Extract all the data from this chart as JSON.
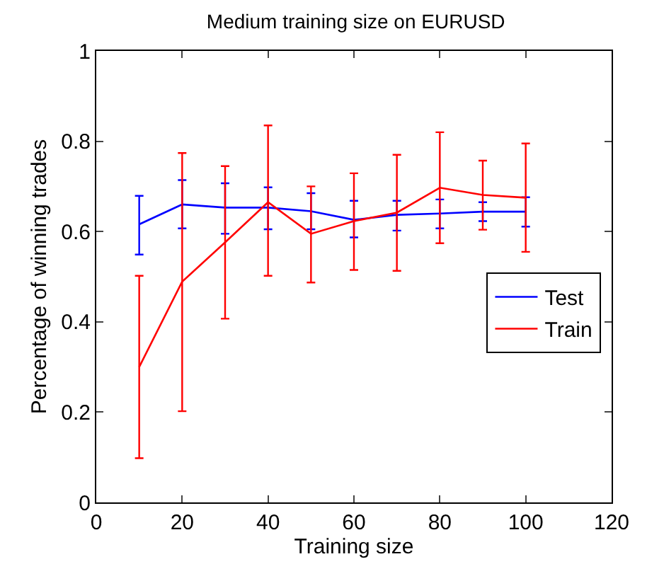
{
  "chart_data": {
    "type": "line",
    "title": "Medium training size on EURUSD",
    "xlabel": "Training size",
    "ylabel": "Percentage of winning trades",
    "x": [
      10,
      20,
      30,
      40,
      50,
      60,
      70,
      80,
      90,
      100
    ],
    "series": [
      {
        "name": "Test",
        "color": "#0000ff",
        "values": [
          0.616,
          0.66,
          0.653,
          0.653,
          0.645,
          0.626,
          0.637,
          0.64,
          0.644,
          0.644
        ],
        "errors": [
          [
            0.549,
            0.679
          ],
          [
            0.607,
            0.714
          ],
          [
            0.595,
            0.707
          ],
          [
            0.605,
            0.698
          ],
          [
            0.605,
            0.685
          ],
          [
            0.587,
            0.668
          ],
          [
            0.602,
            0.668
          ],
          [
            0.607,
            0.671
          ],
          [
            0.623,
            0.665
          ],
          [
            0.611,
            0.676
          ]
        ]
      },
      {
        "name": "Train",
        "color": "#ff0000",
        "values": [
          0.3,
          0.489,
          0.576,
          0.665,
          0.595,
          0.623,
          0.642,
          0.697,
          0.681,
          0.675
        ],
        "errors": [
          [
            0.098,
            0.502
          ],
          [
            0.202,
            0.774
          ],
          [
            0.407,
            0.745
          ],
          [
            0.502,
            0.835
          ],
          [
            0.487,
            0.7
          ],
          [
            0.515,
            0.729
          ],
          [
            0.513,
            0.77
          ],
          [
            0.574,
            0.82
          ],
          [
            0.604,
            0.757
          ],
          [
            0.555,
            0.795
          ]
        ]
      }
    ],
    "xlim": [
      0,
      120
    ],
    "xticks": [
      0,
      20,
      40,
      60,
      80,
      100,
      120
    ],
    "ylim": [
      0,
      1
    ],
    "yticks": [
      0,
      0.2,
      0.4,
      0.6,
      0.8,
      1
    ],
    "legend": "right",
    "marker": "none",
    "line_style": "solid"
  }
}
